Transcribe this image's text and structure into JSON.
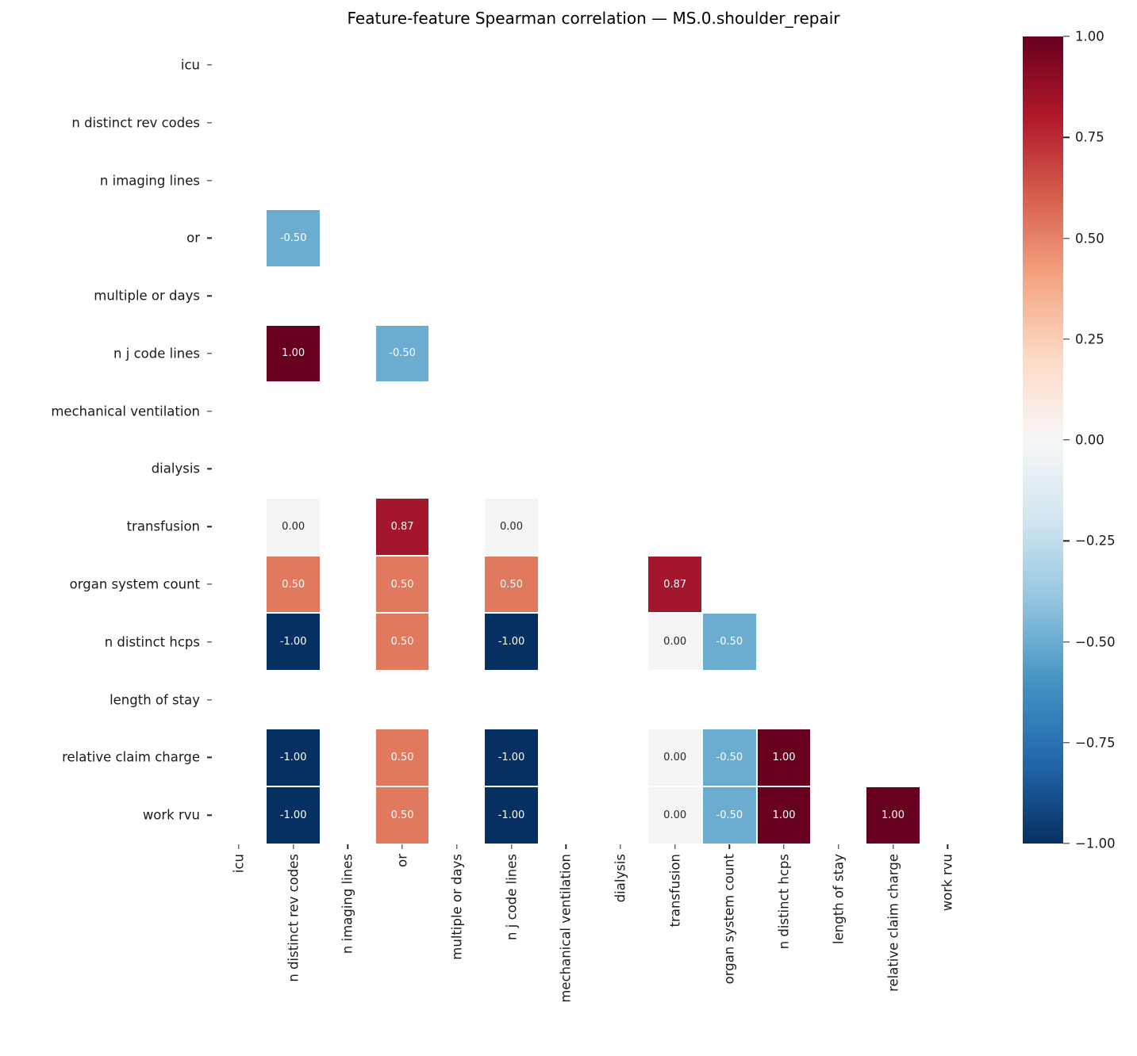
{
  "title": "Feature-feature Spearman correlation — MS.0.shoulder_repair",
  "chart_data": {
    "type": "heatmap",
    "title": "Feature-feature Spearman correlation — MS.0.shoulder_repair",
    "subtitle": "",
    "x_categories": [
      "icu",
      "n distinct rev codes",
      "n imaging lines",
      "or",
      "multiple or days",
      "n j code lines",
      "mechanical ventilation",
      "dialysis",
      "transfusion",
      "organ system count",
      "n distinct hcps",
      "length of stay",
      "relative claim charge",
      "work rvu"
    ],
    "y_categories": [
      "icu",
      "n distinct rev codes",
      "n imaging lines",
      "or",
      "multiple or days",
      "n j code lines",
      "mechanical ventilation",
      "dialysis",
      "transfusion",
      "organ system count",
      "n distinct hcps",
      "length of stay",
      "relative claim charge",
      "work rvu"
    ],
    "layout": "lower-triangle, empty cells are NaN (not drawn)",
    "cells": [
      {
        "row": 3,
        "col": 1,
        "value": -0.5,
        "label": "-0.50"
      },
      {
        "row": 5,
        "col": 1,
        "value": 1.0,
        "label": "1.00"
      },
      {
        "row": 5,
        "col": 3,
        "value": -0.5,
        "label": "-0.50"
      },
      {
        "row": 8,
        "col": 1,
        "value": 0.0,
        "label": "0.00"
      },
      {
        "row": 8,
        "col": 3,
        "value": 0.87,
        "label": "0.87"
      },
      {
        "row": 8,
        "col": 5,
        "value": 0.0,
        "label": "0.00"
      },
      {
        "row": 9,
        "col": 1,
        "value": 0.5,
        "label": "0.50"
      },
      {
        "row": 9,
        "col": 3,
        "value": 0.5,
        "label": "0.50"
      },
      {
        "row": 9,
        "col": 5,
        "value": 0.5,
        "label": "0.50"
      },
      {
        "row": 9,
        "col": 8,
        "value": 0.87,
        "label": "0.87"
      },
      {
        "row": 10,
        "col": 1,
        "value": -1.0,
        "label": "-1.00"
      },
      {
        "row": 10,
        "col": 3,
        "value": 0.5,
        "label": "0.50"
      },
      {
        "row": 10,
        "col": 5,
        "value": -1.0,
        "label": "-1.00"
      },
      {
        "row": 10,
        "col": 8,
        "value": 0.0,
        "label": "0.00"
      },
      {
        "row": 10,
        "col": 9,
        "value": -0.5,
        "label": "-0.50"
      },
      {
        "row": 12,
        "col": 1,
        "value": -1.0,
        "label": "-1.00"
      },
      {
        "row": 12,
        "col": 3,
        "value": 0.5,
        "label": "0.50"
      },
      {
        "row": 12,
        "col": 5,
        "value": -1.0,
        "label": "-1.00"
      },
      {
        "row": 12,
        "col": 8,
        "value": 0.0,
        "label": "0.00"
      },
      {
        "row": 12,
        "col": 9,
        "value": -0.5,
        "label": "-0.50"
      },
      {
        "row": 12,
        "col": 10,
        "value": 1.0,
        "label": "1.00"
      },
      {
        "row": 13,
        "col": 1,
        "value": -1.0,
        "label": "-1.00"
      },
      {
        "row": 13,
        "col": 3,
        "value": 0.5,
        "label": "0.50"
      },
      {
        "row": 13,
        "col": 5,
        "value": -1.0,
        "label": "-1.00"
      },
      {
        "row": 13,
        "col": 8,
        "value": 0.0,
        "label": "0.00"
      },
      {
        "row": 13,
        "col": 9,
        "value": -0.5,
        "label": "-0.50"
      },
      {
        "row": 13,
        "col": 10,
        "value": 1.0,
        "label": "1.00"
      },
      {
        "row": 13,
        "col": 12,
        "value": 1.0,
        "label": "1.00"
      }
    ],
    "value_colors": {
      "-1": "#053061",
      "-0.5": "#6cacd1",
      "0": "#f5f5f5",
      "0.5": "#e0795e",
      "0.87": "#a4162b",
      "1": "#67001f"
    },
    "annotation_colors": {
      "on_dark": "#ffffff",
      "on_light": "#262626"
    },
    "colorbar": {
      "min": -1,
      "max": 1,
      "tick_values": [
        1,
        0.75,
        0.5,
        0.25,
        0,
        -0.25,
        -0.5,
        -0.75,
        -1
      ],
      "tick_labels": [
        "1.00",
        "0.75",
        "0.50",
        "0.25",
        "0.00",
        "−0.25",
        "−0.50",
        "−0.75",
        "−1.00"
      ],
      "colormap_name": "RdBu_r",
      "gradient_stops_top_to_bottom": [
        "#67001f",
        "#b2182b",
        "#d6604d",
        "#f4a582",
        "#fddbc7",
        "#f7f7f7",
        "#d1e5f0",
        "#92c5de",
        "#4393c3",
        "#2166ac",
        "#053061"
      ]
    },
    "grid": false,
    "legend_position": "right-colorbar",
    "n_rows": 14,
    "n_cols": 14
  }
}
